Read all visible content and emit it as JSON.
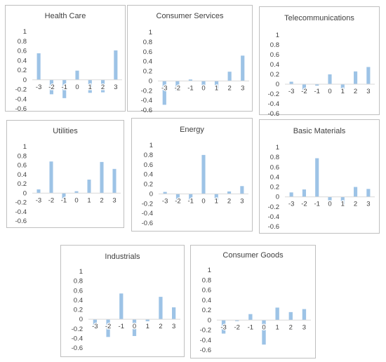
{
  "chart_data": [
    {
      "type": "bar",
      "title": "Health Care",
      "categories": [
        "-3",
        "-2",
        "-1",
        "0",
        "1",
        "2",
        "3"
      ],
      "values": [
        0.55,
        -0.3,
        -0.38,
        0.19,
        -0.27,
        -0.26,
        0.61
      ],
      "ylim": [
        -0.6,
        1
      ],
      "yticks": [
        "1",
        "0.8",
        "0.6",
        "0.4",
        "0.2",
        "0",
        "-0.2",
        "-0.4",
        "-0.6"
      ],
      "xlabel": "",
      "ylabel": "",
      "grid": false,
      "bar_color": "#9dc3e6"
    },
    {
      "type": "bar",
      "title": "Consumer Services",
      "categories": [
        "-3",
        "-2",
        "-1",
        "0",
        "1",
        "2",
        "3"
      ],
      "values": [
        -0.49,
        -0.2,
        0.03,
        -0.17,
        -0.18,
        0.19,
        0.52
      ],
      "ylim": [
        -0.6,
        1
      ],
      "yticks": [
        "1",
        "0.8",
        "0.6",
        "0.4",
        "0.2",
        "0",
        "-0.2",
        "-0.4",
        "-0.6"
      ],
      "xlabel": "",
      "ylabel": "",
      "grid": false,
      "bar_color": "#9dc3e6"
    },
    {
      "type": "bar",
      "title": "Telecommunications",
      "categories": [
        "-3",
        "-2",
        "-1",
        "0",
        "1",
        "2",
        "3"
      ],
      "values": [
        0.05,
        -0.17,
        -0.03,
        0.2,
        -0.1,
        0.26,
        0.35
      ],
      "ylim": [
        -0.6,
        1
      ],
      "yticks": [
        "1",
        "0.8",
        "0.6",
        "0.4",
        "0.2",
        "0",
        "-0.2",
        "-0.4",
        "-0.6"
      ],
      "xlabel": "",
      "ylabel": "",
      "grid": false,
      "bar_color": "#9dc3e6"
    },
    {
      "type": "bar",
      "title": "Utilities",
      "categories": [
        "-3",
        "-2",
        "-1",
        "0",
        "1",
        "2",
        "3"
      ],
      "values": [
        0.08,
        0.68,
        -0.12,
        0.04,
        0.29,
        0.67,
        0.52
      ],
      "ylim": [
        -0.6,
        1
      ],
      "yticks": [
        "1",
        "0.8",
        "0.6",
        "0.4",
        "0.2",
        "0",
        "-0.2",
        "-0.4",
        "-0.6"
      ],
      "xlabel": "",
      "ylabel": "",
      "grid": false,
      "bar_color": "#9dc3e6"
    },
    {
      "type": "bar",
      "title": "Energy",
      "categories": [
        "-3",
        "-2",
        "-1",
        "0",
        "1",
        "2",
        "3"
      ],
      "values": [
        0.04,
        -0.19,
        -0.12,
        0.8,
        -0.13,
        0.05,
        0.16
      ],
      "ylim": [
        -0.6,
        1
      ],
      "yticks": [
        "1",
        "0.8",
        "0.6",
        "0.4",
        "0.2",
        "0",
        "-0.2",
        "-0.4",
        "-0.6"
      ],
      "xlabel": "",
      "ylabel": "",
      "grid": false,
      "bar_color": "#9dc3e6"
    },
    {
      "type": "bar",
      "title": "Basic Materials",
      "categories": [
        "-3",
        "-2",
        "-1",
        "0",
        "1",
        "2",
        "3"
      ],
      "values": [
        0.09,
        0.15,
        0.78,
        -0.07,
        -0.16,
        0.2,
        0.16
      ],
      "ylim": [
        -0.6,
        1
      ],
      "yticks": [
        "1",
        "0.8",
        "0.6",
        "0.4",
        "0.2",
        "0",
        "-0.2",
        "-0.4",
        "-0.6"
      ],
      "xlabel": "",
      "ylabel": "",
      "grid": false,
      "bar_color": "#9dc3e6"
    },
    {
      "type": "bar",
      "title": "Industrials",
      "categories": [
        "-3",
        "-2",
        "-1",
        "0",
        "1",
        "2",
        "3"
      ],
      "values": [
        -0.15,
        -0.37,
        0.54,
        -0.35,
        -0.04,
        0.47,
        0.25
      ],
      "ylim": [
        -0.6,
        1
      ],
      "yticks": [
        "1",
        "0.8",
        "0.6",
        "0.4",
        "0.2",
        "0",
        "-0.2",
        "-0.4",
        "-0.6"
      ],
      "xlabel": "",
      "ylabel": "",
      "grid": false,
      "bar_color": "#9dc3e6"
    },
    {
      "type": "bar",
      "title": "Consumer Goods",
      "categories": [
        "-3",
        "-2",
        "-1",
        "0",
        "1",
        "2",
        "3"
      ],
      "values": [
        -0.27,
        -0.02,
        0.12,
        -0.49,
        0.25,
        0.16,
        0.22
      ],
      "ylim": [
        -0.6,
        1
      ],
      "yticks": [
        "1",
        "0.8",
        "0.6",
        "0.4",
        "0.2",
        "0",
        "-0.2",
        "-0.4",
        "-0.6"
      ],
      "xlabel": "",
      "ylabel": "",
      "grid": false,
      "bar_color": "#9dc3e6"
    }
  ]
}
